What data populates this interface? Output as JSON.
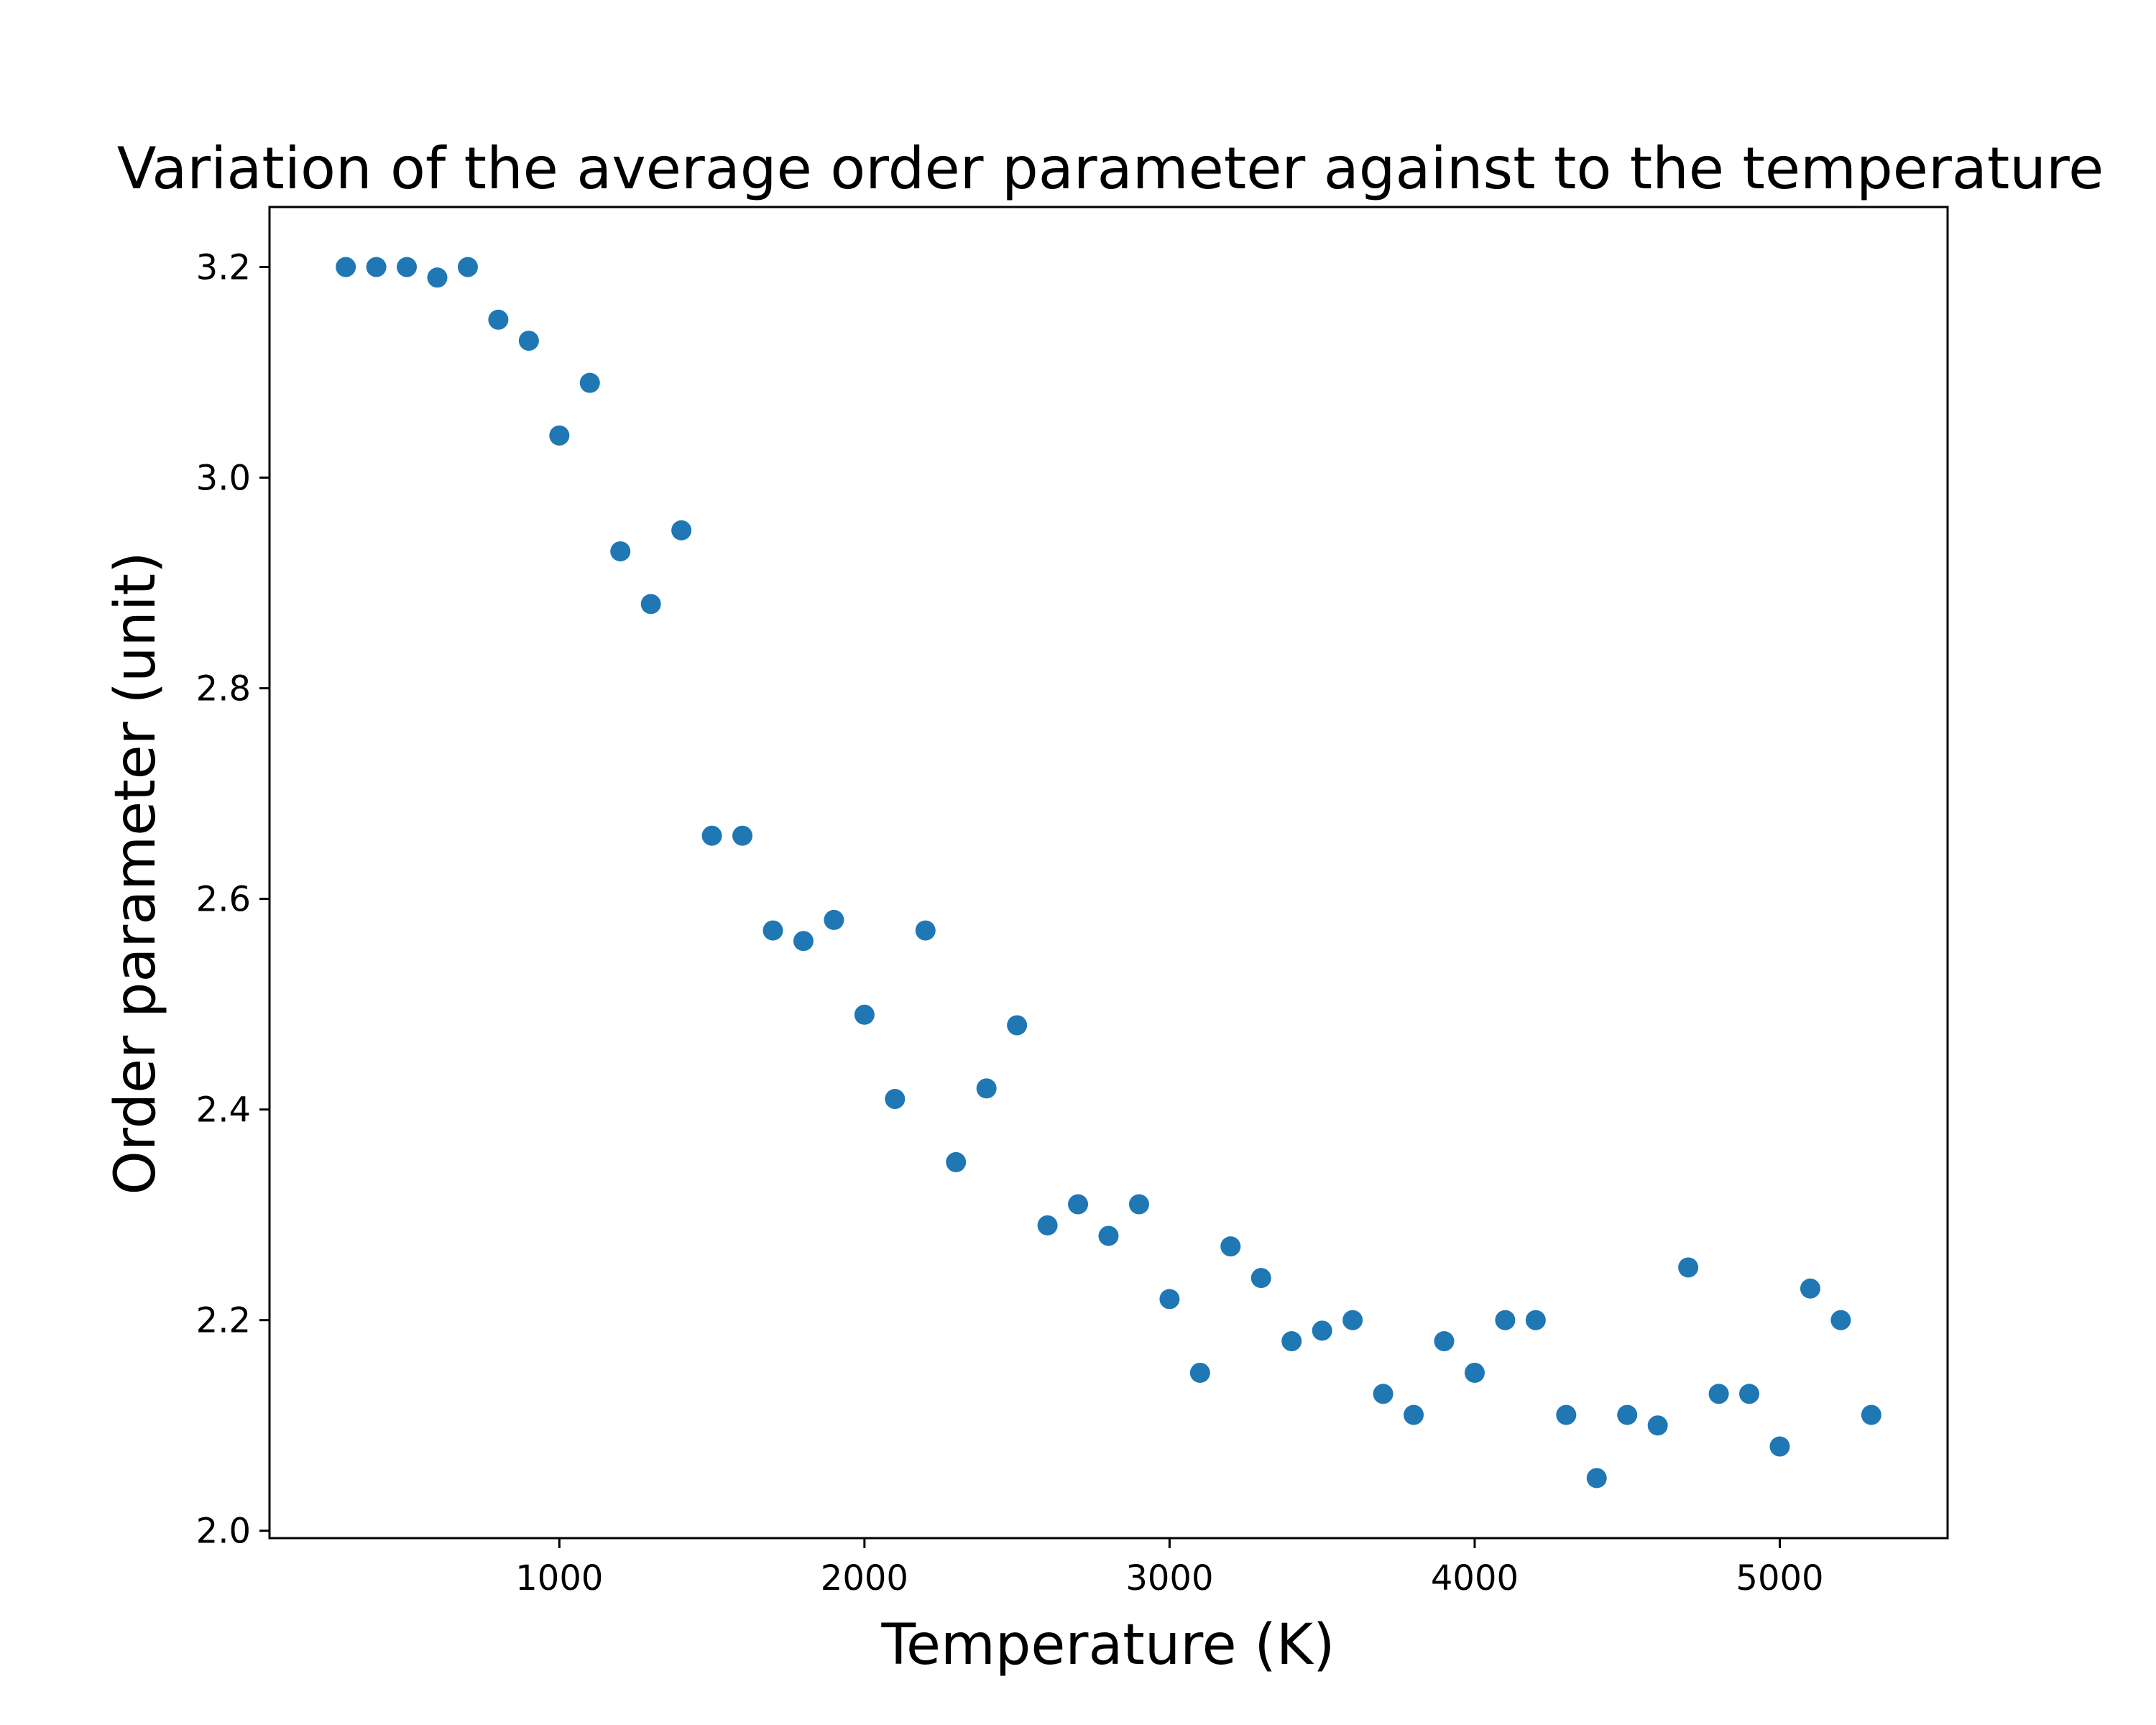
{
  "chart_data": {
    "type": "scatter",
    "title": "Variation of the average order parameter against to the temperature",
    "xlabel": "Temperature (K)",
    "ylabel": "Order parameter (unit)",
    "xlim": [
      50,
      5550
    ],
    "ylim": [
      1.993,
      3.257
    ],
    "xticks": [
      1000,
      2000,
      3000,
      4000,
      5000
    ],
    "xtick_labels": [
      "1000",
      "2000",
      "3000",
      "4000",
      "5000"
    ],
    "yticks": [
      2.0,
      2.2,
      2.4,
      2.6,
      2.8,
      3.0,
      3.2
    ],
    "ytick_labels": [
      "2.0",
      "2.2",
      "2.4",
      "2.6",
      "2.8",
      "3.0",
      "3.2"
    ],
    "grid": false,
    "legend": "none",
    "marker_color": "#1f77b4",
    "series": [
      {
        "x": [
          300,
          400,
          500,
          600,
          700,
          800,
          900,
          1000,
          1100,
          1200,
          1300,
          1400,
          1500,
          1600,
          1700,
          1800,
          1900,
          2000,
          2100,
          2200,
          2300,
          2400,
          2500,
          2600,
          2700,
          2800,
          2900,
          3000,
          3100,
          3200,
          3300,
          3400,
          3500,
          3600,
          3700,
          3800,
          3900,
          4000,
          4100,
          4200,
          4300,
          4400,
          4500,
          4600,
          4700,
          4800,
          4900,
          5000,
          5100,
          5200,
          5300
        ],
        "y": [
          3.2,
          3.2,
          3.2,
          3.19,
          3.2,
          3.15,
          3.13,
          3.04,
          3.09,
          2.93,
          2.88,
          2.95,
          2.66,
          2.66,
          2.57,
          2.56,
          2.58,
          2.49,
          2.41,
          2.57,
          2.35,
          2.42,
          2.48,
          2.29,
          2.31,
          2.28,
          2.31,
          2.22,
          2.15,
          2.27,
          2.24,
          2.18,
          2.19,
          2.2,
          2.13,
          2.11,
          2.18,
          2.15,
          2.2,
          2.2,
          2.11,
          2.05,
          2.11,
          2.1,
          2.25,
          2.13,
          2.13,
          2.08,
          2.23,
          2.2,
          2.11
        ]
      }
    ]
  }
}
